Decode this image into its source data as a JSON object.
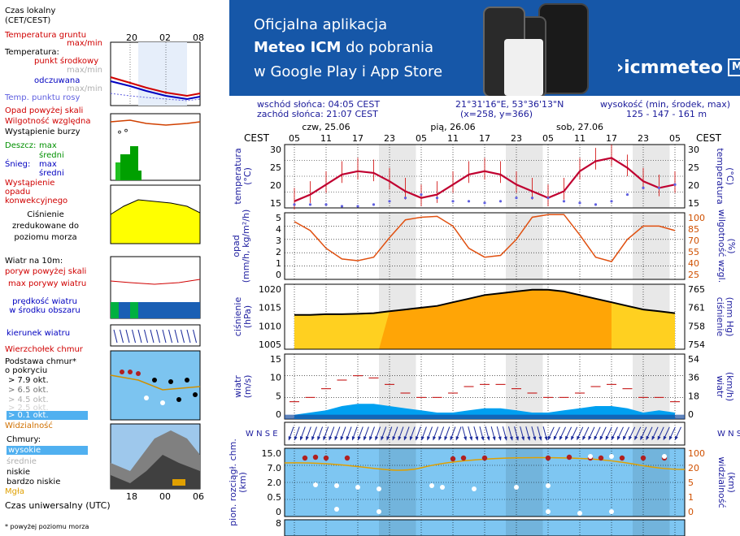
{
  "legend": {
    "local_time": "Czas lokalny\n(CET/CEST)",
    "soil_temp": "Temperatura gruntu",
    "soil_maxmin": "max/min",
    "temperature": "Temperatura:",
    "dew_mid": "punkt środkowy",
    "max_min_1": "max/min",
    "felt": "odczuwana",
    "max_min_2": "max/min",
    "dew_point": "Temp. punktu rosy",
    "precip_over": "Opad powyżej skali",
    "humidity": "Wilgotność względna",
    "storm": "Wystąpienie burzy",
    "rain": "Deszcz:",
    "rain_max": "max",
    "rain_mid": "średni",
    "snow": "Śnieg:",
    "snow_max": "max",
    "snow_mid": "średni",
    "precip_conv": "Wystąpienie opadu konwekcyjnego",
    "pressure": "Ciśnienie zredukowane do poziomu morza",
    "wind": "Wiatr na 10m:",
    "gust_over": "poryw powyżej skali",
    "gust_max": "max porywy wiatru",
    "wind_mean": "prędkość wiatru w środku obszaru",
    "wind_dir": "kierunek wiatru",
    "cloud_top": "Wierzchołek chmur",
    "cloud_base": "Podstawa chmur*\no pokryciu",
    "okt_79": "> 7.9 okt.",
    "okt_65": "> 6.5 okt.",
    "okt_45": "> 4.5 okt.",
    "okt_25": "> 2.5 okt.",
    "okt_01": "> 0.1 okt.",
    "visibility": "Widzialność",
    "clouds": "Chmury:",
    "cl_high": "wysokie",
    "cl_mid": "średnie",
    "cl_low": "niskie",
    "cl_vlow": "bardzo niskie",
    "fog": "Mgła",
    "utc": "Czas uniwersalny (UTC)",
    "footnote": "* powyżej poziomu morza",
    "top_hours": [
      "20",
      "02",
      "08"
    ],
    "bottom_hours": [
      "18",
      "00",
      "06"
    ]
  },
  "banner": {
    "line1": "Oficjalna aplikacja",
    "line2_bold": "Meteo ICM",
    "line2_rest": " do pobrania",
    "line3": "w Google Play i App Store",
    "logo": "icmmeteo",
    "badge": "M°"
  },
  "info": {
    "sunrise": "wschód słońca: 04:05 CEST",
    "sunset": "zachód słońca: 21:07 CEST",
    "coords": "21°31'16\"E, 53°36'13\"N",
    "grid": "(x=258,  y=366)",
    "elev_label": "wysokość (min, środek, max)",
    "elev": "125 - 147 - 161 m"
  },
  "main": {
    "tz": "CEST",
    "days": [
      "czw, 25.06",
      "pią, 26.06",
      "sob, 27.06"
    ],
    "hours": [
      "05",
      "11",
      "17",
      "23",
      "05",
      "11",
      "17",
      "23",
      "05",
      "11",
      "17",
      "23",
      "05"
    ],
    "temp_label_l": "temperatura\n(°C)",
    "temp_label_r": "(°C)\ntemperatura",
    "temp_ticks": [
      "30",
      "25",
      "20",
      "15"
    ],
    "precip_label_l": "opad\n(mm/h, kg/m²/h)",
    "precip_label_r": "(%)\nwilgotność wzgl.",
    "precip_ticks": [
      "5",
      "4",
      "3",
      "2",
      "1",
      "0"
    ],
    "hum_ticks": [
      "100",
      "85",
      "70",
      "55",
      "40",
      "25"
    ],
    "pres_label_l": "ciśnienie\n(hPa)",
    "pres_label_r": "(mm Hg)\nciśnienie",
    "pres_ticks": [
      "1020",
      "1015",
      "1010",
      "1005"
    ],
    "mmhg_ticks": [
      "765",
      "761",
      "758",
      "754"
    ],
    "wind_label_l": "wiatr\n(m/s)",
    "wind_label_r": "(km/h)\nwiatr",
    "wind_ticks": [
      "15",
      "10",
      "5",
      "0"
    ],
    "kmh_ticks": [
      "54",
      "36",
      "18",
      "0"
    ],
    "cloud_label_l": "pion. rozciągł. chm.\n(km)",
    "cloud_label_r": "(km)\nwidzialność",
    "cloud_ticks": [
      "15.0",
      "7.0",
      "2.0",
      "0.5",
      "0"
    ],
    "vis_ticks": [
      "100",
      "20",
      "5",
      "1",
      "0"
    ],
    "extra_tick": "8",
    "wind_letters": "W N S E"
  },
  "chart_data": [
    {
      "type": "line",
      "title": "temperatura",
      "ylabel": "°C",
      "ylim": [
        14,
        33
      ],
      "x_hours_from_05_cest_25_06": [
        0,
        3,
        6,
        9,
        12,
        15,
        18,
        21,
        24,
        27,
        30,
        33,
        36,
        39,
        42,
        45,
        48,
        51,
        54,
        57,
        60,
        63,
        66,
        69,
        72
      ],
      "series": [
        {
          "name": "temperatura",
          "values": [
            16,
            18,
            21,
            24,
            25,
            24.5,
            22,
            19,
            17,
            18,
            21,
            24,
            25,
            24,
            21,
            19,
            17,
            19,
            25,
            28,
            29,
            26,
            22,
            20,
            21
          ]
        },
        {
          "name": "punkt rosy",
          "values": [
            15,
            15,
            15,
            14.5,
            14.5,
            15,
            16,
            17,
            18,
            17,
            16,
            16,
            15.5,
            16,
            17,
            17,
            17,
            16,
            15.5,
            15,
            16,
            18,
            20,
            20,
            21
          ]
        }
      ]
    },
    {
      "type": "line",
      "title": "wilgotność wzgl.",
      "ylabel": "%",
      "ylim": [
        25,
        100
      ],
      "series": [
        {
          "name": "wilgotność",
          "values": [
            90,
            80,
            60,
            48,
            46,
            50,
            72,
            92,
            95,
            96,
            85,
            60,
            50,
            52,
            70,
            95,
            98,
            98,
            75,
            50,
            45,
            70,
            85,
            85,
            80
          ]
        }
      ]
    },
    {
      "type": "area",
      "title": "ciśnienie",
      "ylabel": "hPa",
      "ylim": [
        1005,
        1023
      ],
      "series": [
        {
          "name": "ciśnienie",
          "values": [
            1014.5,
            1014.5,
            1014.7,
            1014.7,
            1014.8,
            1015,
            1015.5,
            1016,
            1016.5,
            1017,
            1018,
            1019,
            1020,
            1020.5,
            1021,
            1021.5,
            1021.5,
            1021,
            1020,
            1019,
            1018,
            1017,
            1016,
            1015.5,
            1015
          ]
        }
      ]
    },
    {
      "type": "area",
      "title": "wiatr",
      "ylabel": "m/s",
      "ylim": [
        0,
        15
      ],
      "series": [
        {
          "name": "prędkość wiatru",
          "values": [
            1,
            1.5,
            2,
            3,
            3.5,
            3.5,
            3,
            2.5,
            2,
            1.5,
            1.5,
            2,
            2.5,
            2.5,
            2,
            1.5,
            1.5,
            2,
            2.5,
            3,
            3,
            2.5,
            1.5,
            2,
            1.5
          ]
        },
        {
          "name": "max porywy wiatru",
          "values": [
            4,
            5,
            7,
            9,
            10,
            9.5,
            8,
            6,
            5,
            5,
            6,
            7.5,
            8,
            8,
            7,
            6,
            5,
            5,
            6,
            7.5,
            8,
            7,
            5,
            5,
            4
          ]
        }
      ]
    }
  ]
}
